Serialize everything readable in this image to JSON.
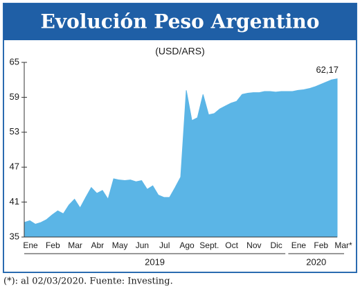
{
  "chart_data": {
    "type": "area",
    "title": "Evolución Peso Argentino",
    "subtitle": "(USD/ARS)",
    "categories": [
      "Ene",
      null,
      null,
      null,
      "Feb",
      null,
      null,
      null,
      "Mar",
      null,
      null,
      null,
      "Abr",
      null,
      null,
      null,
      "May",
      null,
      null,
      null,
      "Jun",
      null,
      null,
      null,
      "Jul",
      null,
      null,
      null,
      "Ago",
      null,
      null,
      null,
      "Sept.",
      null,
      null,
      null,
      "Oct",
      null,
      null,
      null,
      "Nov",
      null,
      null,
      null,
      "Dic",
      null,
      null,
      null,
      "Ene",
      null,
      null,
      null,
      "Feb",
      null,
      null,
      null,
      "Mar*"
    ],
    "series": [
      {
        "name": "USD/ARS",
        "color": "#5bb5e6",
        "values": [
          37.5,
          37.8,
          37.2,
          37.5,
          38.0,
          38.8,
          39.5,
          39.0,
          40.5,
          41.5,
          40.0,
          41.8,
          43.5,
          42.5,
          43.0,
          41.5,
          45.0,
          44.8,
          44.7,
          44.8,
          44.5,
          44.7,
          43.2,
          43.8,
          42.2,
          41.8,
          41.8,
          43.5,
          45.3,
          60.2,
          55.0,
          55.5,
          59.5,
          56.0,
          56.2,
          57.0,
          57.5,
          58.0,
          58.3,
          59.5,
          59.7,
          59.8,
          59.8,
          60.0,
          60.0,
          59.9,
          60.0,
          60.0,
          60.0,
          60.2,
          60.3,
          60.5,
          60.8,
          61.2,
          61.6,
          62.0,
          62.17
        ],
        "value_labels": [
          null,
          null,
          null,
          null,
          null,
          null,
          null,
          null,
          null,
          null,
          null,
          null,
          null,
          null,
          null,
          null,
          null,
          null,
          null,
          null,
          null,
          null,
          null,
          null,
          null,
          null,
          null,
          null,
          null,
          null,
          null,
          null,
          null,
          null,
          null,
          null,
          null,
          null,
          null,
          null,
          null,
          null,
          null,
          null,
          null,
          null,
          null,
          null,
          null,
          null,
          null,
          null,
          null,
          null,
          null,
          null,
          "62,17"
        ]
      }
    ],
    "ylim": [
      35,
      65
    ],
    "yticks": [
      35,
      41,
      47,
      53,
      59,
      65
    ],
    "grid": false,
    "year_groups": [
      "2019",
      "2020"
    ],
    "footnote": "(*): al 02/03/2020. Fuente: Investing."
  }
}
